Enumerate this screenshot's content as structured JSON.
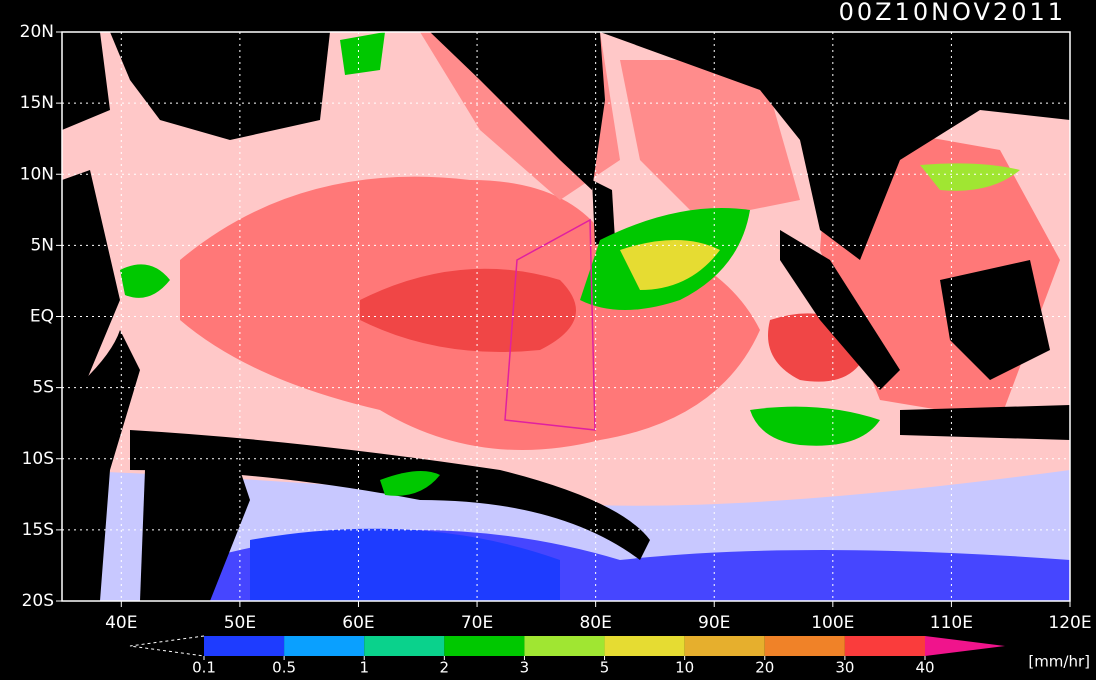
{
  "title": "00Z10NOV2011",
  "map": {
    "xlim": [
      35,
      120
    ],
    "ylim": [
      -20,
      20
    ],
    "xticks": [
      {
        "value": 40,
        "label": "40E"
      },
      {
        "value": 50,
        "label": "50E"
      },
      {
        "value": 60,
        "label": "60E"
      },
      {
        "value": 70,
        "label": "70E"
      },
      {
        "value": 80,
        "label": "80E"
      },
      {
        "value": 90,
        "label": "90E"
      },
      {
        "value": 100,
        "label": "100E"
      },
      {
        "value": 110,
        "label": "110E"
      },
      {
        "value": 120,
        "label": "120E"
      }
    ],
    "yticks": [
      {
        "value": 20,
        "label": "20N"
      },
      {
        "value": 15,
        "label": "15N"
      },
      {
        "value": 10,
        "label": "10N"
      },
      {
        "value": 5,
        "label": "5N"
      },
      {
        "value": 0,
        "label": "EQ"
      },
      {
        "value": -5,
        "label": "5S"
      },
      {
        "value": -10,
        "label": "10S"
      },
      {
        "value": -15,
        "label": "15S"
      },
      {
        "value": -20,
        "label": "20S"
      }
    ],
    "grid": true
  },
  "colorbar": {
    "levels": [
      0.1,
      0.5,
      1,
      2,
      3,
      5,
      10,
      20,
      30,
      40
    ],
    "colors": [
      "#1e3cff",
      "#0aa0ff",
      "#0ad28c",
      "#00c800",
      "#a0e632",
      "#e6dc32",
      "#e6af2d",
      "#f08228",
      "#fa3c3c"
    ],
    "over_color": "#f0148c",
    "unit": "[mm/hr]"
  }
}
